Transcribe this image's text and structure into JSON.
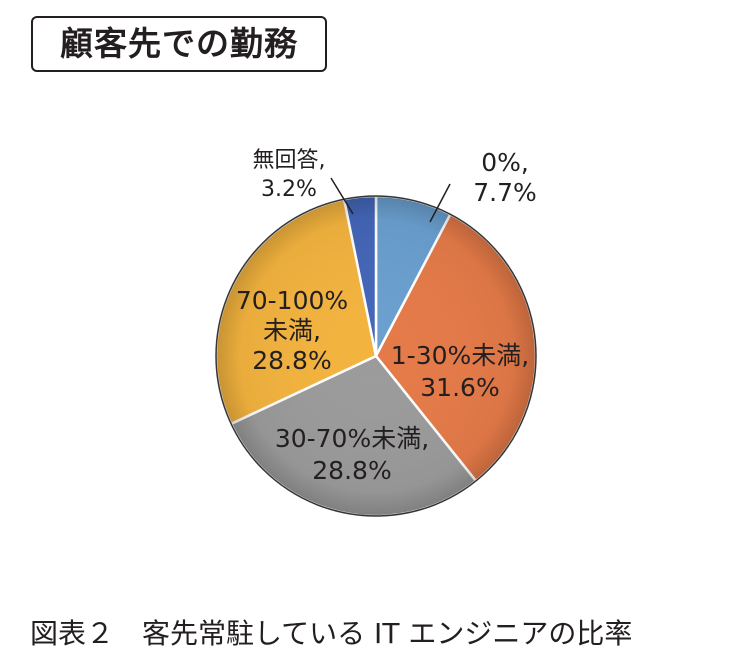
{
  "title": "顧客先での勤務",
  "caption": "図表２　客先常駐している IT エンジニアの比率",
  "chart_data": {
    "type": "pie",
    "start_angle_deg": 0,
    "direction": "clockwise",
    "slices": [
      {
        "label": "0%",
        "value": 7.7,
        "value_label": "7.7%",
        "color": "#6a9fcf"
      },
      {
        "label": "1-30%未満",
        "value": 31.6,
        "value_label": "31.6%",
        "color": "#e57a48"
      },
      {
        "label": "30-70%未満",
        "value": 28.8,
        "value_label": "28.8%",
        "color": "#9b9b9b"
      },
      {
        "label": "70-100%未満",
        "value": 28.8,
        "value_label": "28.8%",
        "color": "#f3b33e"
      },
      {
        "label": "無回答",
        "value": 3.2,
        "value_label": "3.2%",
        "color": "#4466b8"
      }
    ],
    "label_lines": [
      [
        "0%,",
        "7.7%"
      ],
      [
        "1-30%未満,",
        "31.6%"
      ],
      [
        "30-70%未満,",
        "28.8%"
      ],
      [
        "70-100%",
        "未満,",
        "28.8%"
      ],
      [
        "無回答,",
        "3.2%"
      ]
    ]
  }
}
